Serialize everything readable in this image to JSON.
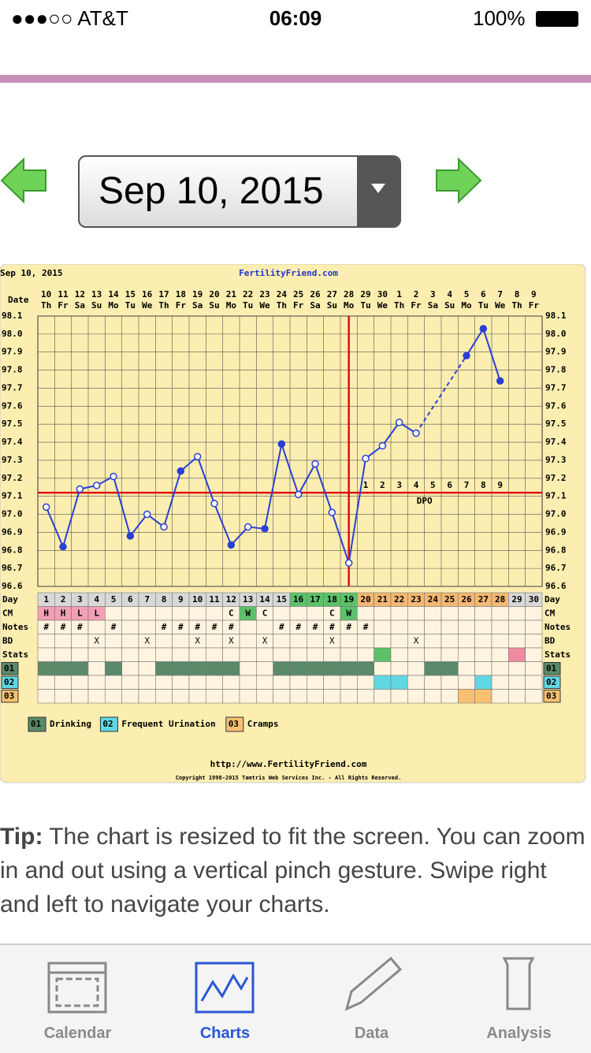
{
  "status_bar": {
    "carrier": "●●●○○ AT&T",
    "time": "06:09",
    "battery": "100%"
  },
  "date_selector": {
    "value": "Sep 10, 2015"
  },
  "chart_data": {
    "type": "line",
    "header_date": "Sep 10, 2015",
    "site": "FertilityFriend.com",
    "date_label": "Date",
    "dates": [
      "10",
      "11",
      "12",
      "13",
      "14",
      "15",
      "16",
      "17",
      "18",
      "19",
      "20",
      "21",
      "22",
      "23",
      "24",
      "25",
      "26",
      "27",
      "28",
      "29",
      "30",
      "1",
      "2",
      "3",
      "4",
      "5",
      "6",
      "7",
      "8",
      "9"
    ],
    "weekdays": [
      "Th",
      "Fr",
      "Sa",
      "Su",
      "Mo",
      "Tu",
      "We",
      "Th",
      "Fr",
      "Sa",
      "Su",
      "Mo",
      "Tu",
      "We",
      "Th",
      "Fr",
      "Sa",
      "Su",
      "Mo",
      "Tu",
      "We",
      "Th",
      "Fr",
      "Sa",
      "Su",
      "Mo",
      "Tu",
      "We",
      "Th",
      "Fr"
    ],
    "days": [
      1,
      2,
      3,
      4,
      5,
      6,
      7,
      8,
      9,
      10,
      11,
      12,
      13,
      14,
      15,
      16,
      17,
      18,
      19,
      20,
      21,
      22,
      23,
      24,
      25,
      26,
      27,
      28,
      29,
      30
    ],
    "series": [
      {
        "name": "Temperature",
        "color": "#2b3fd6",
        "values": [
          97.04,
          96.82,
          97.14,
          97.16,
          97.21,
          96.88,
          97.0,
          96.93,
          97.24,
          97.32,
          97.06,
          96.83,
          96.93,
          96.92,
          97.39,
          97.11,
          97.28,
          97.01,
          96.73,
          97.31,
          97.38,
          97.51,
          97.45,
          null,
          null,
          97.88,
          98.03,
          97.74,
          null,
          null
        ]
      }
    ],
    "filled_days": [
      2,
      6,
      9,
      12,
      14,
      15,
      26,
      27,
      28
    ],
    "ylim": [
      96.6,
      98.1
    ],
    "yticks": [
      96.6,
      96.7,
      96.8,
      96.9,
      {
        "value": 97,
        "label": "97.0"
      },
      97.1,
      97.2,
      97.3,
      97.4,
      97.5,
      97.6,
      97.7,
      97.8,
      97.9,
      {
        "value": 98,
        "label": "98.0"
      },
      98.1
    ],
    "coverline": 97.12,
    "ovulation_day": 19,
    "dpo": [
      "1",
      "2",
      "3",
      "4",
      "5",
      "6",
      "7",
      "8",
      "9"
    ],
    "dpo_start": 20,
    "dpo_label": "DPO",
    "phases": [
      {
        "from": 16,
        "to": 19,
        "color": "#5cc26a"
      },
      {
        "from": 20,
        "to": 28,
        "color": "#f4b872"
      }
    ],
    "row_labels": [
      "Day",
      "CM",
      "Notes",
      "BD",
      "Stats"
    ],
    "cm": [
      "H",
      "H",
      "L",
      "L",
      null,
      null,
      null,
      null,
      null,
      null,
      null,
      "C",
      "W",
      "C",
      null,
      null,
      null,
      "C",
      "W",
      null,
      null,
      null,
      null,
      null,
      null,
      null,
      null,
      null,
      null,
      null
    ],
    "cm_colors": {
      "H": "#f3a0b4",
      "L": "#f3a0b4",
      "W": "#5cc26a",
      "C": "#fff4e0"
    },
    "notes": [
      "#",
      "#",
      "#",
      null,
      "#",
      null,
      null,
      "#",
      "#",
      "#",
      "#",
      "#",
      null,
      null,
      "#",
      "#",
      "#",
      "#",
      "#",
      "#",
      null,
      null,
      null,
      null,
      null,
      null,
      null,
      null,
      null,
      null
    ],
    "bd": [
      null,
      null,
      null,
      "X",
      null,
      null,
      "X",
      null,
      null,
      "X",
      null,
      "X",
      null,
      "X",
      null,
      null,
      null,
      "X",
      null,
      null,
      null,
      null,
      "X",
      null,
      null,
      null,
      null,
      null,
      null,
      null
    ],
    "stats": [
      {
        "day": 21,
        "color": "#5cc26a"
      },
      {
        "day": 29,
        "color": "#f08aa0"
      }
    ],
    "rows": [
      {
        "code": "01",
        "label": "Drinking",
        "color": "#5b8a6a",
        "days": [
          1,
          2,
          3,
          5,
          8,
          9,
          10,
          11,
          12,
          15,
          16,
          17,
          18,
          19,
          20,
          24,
          25
        ]
      },
      {
        "code": "02",
        "label": "Frequent Urination",
        "color": "#5fd8e4",
        "days": [
          21,
          22,
          27
        ]
      },
      {
        "code": "03",
        "label": "Cramps",
        "color": "#f8c070",
        "days": [
          26,
          27
        ]
      }
    ],
    "url": "http://www.FertilityFriend.com",
    "copyright": "Copyright 1998-2015 Tamtris Web Services Inc. - All Rights Reserved."
  },
  "tip": {
    "label": "Tip:",
    "text": " The chart is resized to fit the screen. You can zoom in and out using a vertical pinch gesture. Swipe right and left to navigate your charts."
  },
  "tabs": [
    "Calendar",
    "Charts",
    "Data",
    "Analysis"
  ]
}
